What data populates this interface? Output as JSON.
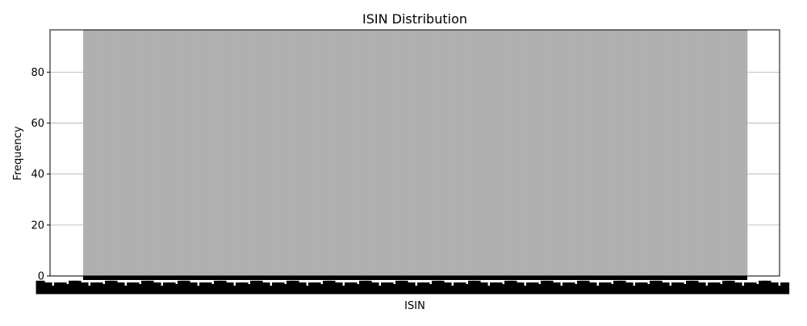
{
  "chart_data": {
    "type": "bar",
    "title": "ISIN Distribution",
    "xlabel": "ISIN",
    "ylabel": "Frequency",
    "ylim": [
      0,
      96.6
    ],
    "yticks": [
      0,
      20,
      40,
      60,
      80
    ],
    "grid": "y",
    "legend": "none",
    "bar_color": "#b0b0b0",
    "tick_labels_legible": false,
    "categories_note": "x tick labels overlap and are not legible",
    "values_note": "all bars visually reach the top of the plot area",
    "series_count": 1,
    "value": 96.6
  }
}
